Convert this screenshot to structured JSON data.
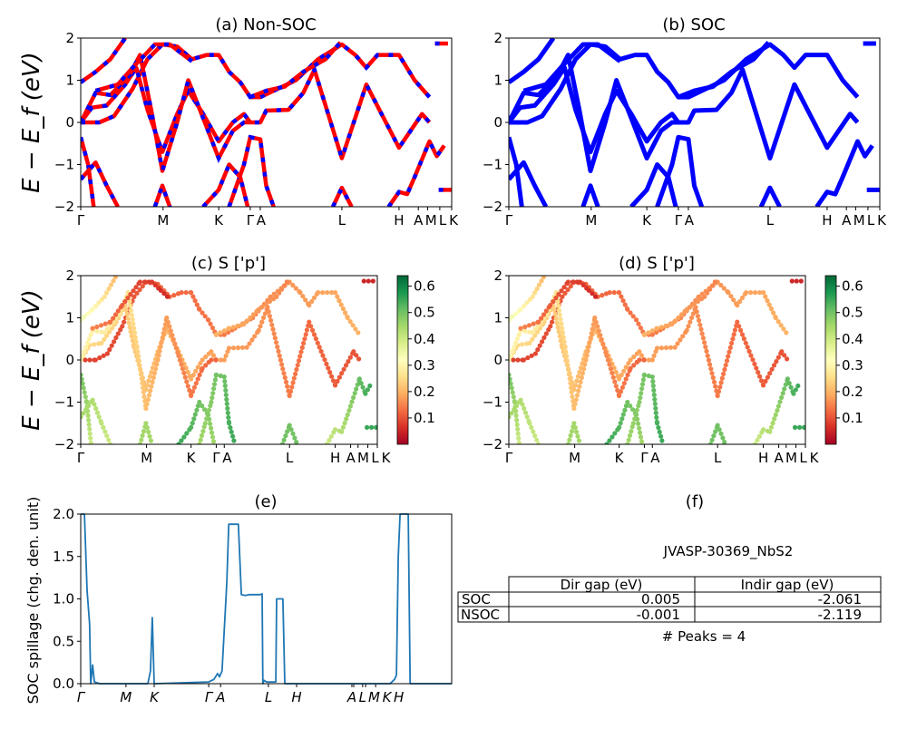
{
  "chart_data": {
    "type": "line",
    "band_panels": [
      {
        "id": "a",
        "title": "(a) Non-SOC",
        "ylabel": "E − E_f (eV)",
        "ylim": [
          -2,
          2
        ],
        "yticks": [
          "2",
          "1",
          "0",
          "−1",
          "−2"
        ],
        "style": "red-blue-dashed"
      },
      {
        "id": "b",
        "title": "(b) SOC",
        "ylabel": "",
        "ylim": [
          -2,
          2
        ],
        "yticks": [
          "2",
          "1",
          "0",
          "−1",
          "−2"
        ],
        "style": "blue"
      },
      {
        "id": "c",
        "title": "(c)  S ['p']",
        "ylabel": "E − E_f (eV)",
        "ylim": [
          -2,
          2
        ],
        "yticks": [
          "2",
          "1",
          "0",
          "−1",
          "−2"
        ],
        "style": "scatter",
        "colorbar": {
          "colormap": "RdYlGn",
          "range": [
            0.0,
            0.64
          ],
          "ticks": [
            "0.6",
            "0.5",
            "0.4",
            "0.3",
            "0.2",
            "0.1"
          ]
        }
      },
      {
        "id": "d",
        "title": "(d) S ['p']",
        "ylabel": "",
        "ylim": [
          -2,
          2
        ],
        "yticks": [
          "2",
          "1",
          "0",
          "−1",
          "−2"
        ],
        "style": "scatter",
        "colorbar": {
          "colormap": "RdYlGn",
          "range": [
            0.0,
            0.64
          ],
          "ticks": [
            "0.6",
            "0.5",
            "0.4",
            "0.3",
            "0.2",
            "0.1"
          ]
        }
      }
    ],
    "kpath_labels": [
      {
        "label": "Γ",
        "k": 0.0
      },
      {
        "label": "M",
        "k": 0.222
      },
      {
        "label": "K",
        "k": 0.372
      },
      {
        "label": "Γ",
        "k": 0.457
      },
      {
        "label": "A",
        "k": 0.484
      },
      {
        "label": "L",
        "k": 0.704
      },
      {
        "label": "H",
        "k": 0.858
      },
      {
        "label": "A",
        "k": 0.91
      },
      {
        "label": "M",
        "k": 0.935
      },
      {
        "label": "L",
        "k": 0.968
      },
      {
        "label": "K",
        "k": 1.0
      }
    ],
    "bands": [
      {
        "p_weight": [
          0.08,
          0.2
        ],
        "points": [
          [
            0,
            0
          ],
          [
            0.05,
            0
          ],
          [
            0.09,
            0.15
          ],
          [
            0.14,
            0.8
          ],
          [
            0.18,
            1.5
          ],
          [
            0.22,
            1.85
          ],
          [
            0.26,
            1.8
          ],
          [
            0.3,
            1.5
          ],
          [
            0.34,
            1.6
          ],
          [
            0.372,
            1.6
          ],
          [
            0.4,
            1.2
          ],
          [
            0.43,
            0.95
          ],
          [
            0.457,
            0.6
          ],
          [
            0.484,
            0.6
          ],
          [
            0.52,
            0.75
          ],
          [
            0.58,
            1.0
          ],
          [
            0.64,
            1.5
          ],
          [
            0.704,
            1.85
          ],
          [
            0.74,
            1.6
          ],
          [
            0.77,
            1.3
          ],
          [
            0.8,
            1.6
          ],
          [
            0.858,
            1.6
          ],
          [
            0.9,
            1.0
          ],
          [
            0.94,
            0.6
          ]
        ]
      },
      {
        "p_weight": [
          0.25,
          0.1
        ],
        "points": [
          [
            0,
            0
          ],
          [
            0.03,
            0.35
          ],
          [
            0.07,
            0.4
          ],
          [
            0.12,
            0.9
          ],
          [
            0.15,
            1.3
          ],
          [
            0.18,
            0.3
          ],
          [
            0.22,
            -0.7
          ],
          [
            0.26,
            0.2
          ],
          [
            0.29,
            0.75
          ],
          [
            0.33,
            0.2
          ],
          [
            0.372,
            -0.45
          ],
          [
            0.41,
            0.0
          ],
          [
            0.44,
            0.2
          ],
          [
            0.457,
            0.0
          ],
          [
            0.484,
            0.0
          ],
          [
            0.5,
            0.28
          ],
          [
            0.56,
            0.3
          ],
          [
            0.6,
            0.7
          ],
          [
            0.63,
            1.25
          ],
          [
            0.704,
            -0.85
          ],
          [
            0.77,
            0.9
          ],
          [
            0.858,
            -0.6
          ],
          [
            0.92,
            0.2
          ],
          [
            0.94,
            0.0
          ]
        ]
      },
      {
        "p_weight": [
          0.3,
          0.12
        ],
        "points": [
          [
            0,
            0
          ],
          [
            0.04,
            0.7
          ],
          [
            0.08,
            0.65
          ],
          [
            0.13,
            1.1
          ],
          [
            0.16,
            1.6
          ],
          [
            0.19,
            0.3
          ],
          [
            0.22,
            -1.15
          ],
          [
            0.26,
            0.0
          ],
          [
            0.29,
            1.0
          ],
          [
            0.33,
            0.1
          ],
          [
            0.372,
            -0.85
          ],
          [
            0.41,
            -0.2
          ],
          [
            0.44,
            0.0
          ],
          [
            0.457,
            0.0
          ]
        ]
      },
      {
        "p_weight": [
          0.35,
          0.2
        ],
        "points": [
          [
            0,
            0.95
          ],
          [
            0.04,
            1.2
          ],
          [
            0.08,
            1.5
          ],
          [
            0.12,
            2.0
          ]
        ]
      },
      {
        "p_weight": [
          0.15,
          0.05
        ],
        "points": [
          [
            0.04,
            0.75
          ],
          [
            0.1,
            0.9
          ],
          [
            0.14,
            1.3
          ],
          [
            0.2,
            1.85
          ],
          [
            0.24,
            1.85
          ],
          [
            0.27,
            1.65
          ],
          [
            0.3,
            1.45
          ]
        ]
      },
      {
        "p_weight": [
          0.2,
          0.15
        ],
        "points": [
          [
            0.457,
            0.6
          ],
          [
            0.5,
            0.75
          ],
          [
            0.55,
            0.85
          ],
          [
            0.6,
            1.2
          ],
          [
            0.66,
            1.5
          ],
          [
            0.7,
            1.9
          ]
        ]
      },
      {
        "p_weight": [
          0.45,
          0.55
        ],
        "points": [
          [
            0.4,
            -2
          ],
          [
            0.42,
            -1.5
          ],
          [
            0.44,
            -1.0
          ],
          [
            0.457,
            -0.35
          ],
          [
            0.484,
            -0.4
          ],
          [
            0.5,
            -1.5
          ],
          [
            0.52,
            -2
          ]
        ]
      },
      {
        "p_weight": [
          0.5,
          0.4
        ],
        "points": [
          [
            0,
            -0.35
          ],
          [
            0.02,
            -1.0
          ],
          [
            0.035,
            -2
          ]
        ]
      },
      {
        "p_weight": [
          0.45,
          0.4
        ],
        "points": [
          [
            0,
            -1.35
          ],
          [
            0.04,
            -0.95
          ],
          [
            0.07,
            -1.5
          ],
          [
            0.1,
            -2
          ]
        ]
      },
      {
        "p_weight": [
          0.45,
          0.45
        ],
        "points": [
          [
            0.2,
            -2
          ],
          [
            0.22,
            -1.5
          ],
          [
            0.24,
            -2
          ]
        ]
      },
      {
        "p_weight": [
          0.5,
          0.5
        ],
        "points": [
          [
            0.68,
            -2
          ],
          [
            0.704,
            -1.55
          ],
          [
            0.73,
            -2
          ]
        ]
      },
      {
        "p_weight": [
          0.55,
          0.45
        ],
        "points": [
          [
            0.33,
            -2
          ],
          [
            0.372,
            -1.6
          ],
          [
            0.4,
            -1.0
          ],
          [
            0.43,
            -1.3
          ],
          [
            0.45,
            -2
          ]
        ]
      },
      {
        "p_weight": [
          0.4,
          0.55
        ],
        "points": [
          [
            0.83,
            -2
          ],
          [
            0.858,
            -1.65
          ],
          [
            0.88,
            -1.7
          ],
          [
            0.9,
            -1.3
          ],
          [
            0.94,
            -0.45
          ],
          [
            0.96,
            -0.8
          ],
          [
            0.98,
            -0.55
          ]
        ]
      },
      {
        "p_weight": [
          0.05,
          0.05
        ],
        "points": [
          [
            0.955,
            1.87
          ],
          [
            0.99,
            1.87
          ]
        ]
      },
      {
        "p_weight": [
          0.55,
          0.55
        ],
        "points": [
          [
            0.965,
            -1.6
          ],
          [
            1.0,
            -1.6
          ]
        ]
      }
    ],
    "spillage": {
      "title": "(e)",
      "ylabel": "SOC spillage (chg. den. unit)",
      "ylim": [
        0,
        2.0
      ],
      "yticks": [
        "2.0",
        "1.5",
        "1.0",
        "0.5",
        "0.0"
      ],
      "color": "#1f77b4",
      "xtick_labels": [
        {
          "label": "Γ",
          "k": 0.0
        },
        {
          "label": "M",
          "k": 0.122
        },
        {
          "label": "K",
          "k": 0.198
        },
        {
          "label": "Γ",
          "k": 0.345
        },
        {
          "label": "A",
          "k": 0.377
        },
        {
          "label": "L",
          "k": 0.506
        },
        {
          "label": "H",
          "k": 0.582
        },
        {
          "label": "A",
          "k": 0.731
        },
        {
          "label": "L",
          "k": 0.736
        },
        {
          "label": "M",
          "k": 0.76
        },
        {
          "label": "K",
          "k": 0.768
        },
        {
          "label": "H",
          "k": 0.795
        }
      ],
      "points": [
        [
          0,
          2.0
        ],
        [
          0.01,
          2.0
        ],
        [
          0.017,
          1.1
        ],
        [
          0.024,
          0.7
        ],
        [
          0.027,
          0.0
        ],
        [
          0.032,
          0.22
        ],
        [
          0.037,
          0.02
        ],
        [
          0.051,
          0.0
        ],
        [
          0.181,
          0.0
        ],
        [
          0.188,
          0.15
        ],
        [
          0.193,
          0.78
        ],
        [
          0.198,
          0.0
        ],
        [
          0.345,
          0.02
        ],
        [
          0.359,
          0.05
        ],
        [
          0.369,
          0.12
        ],
        [
          0.374,
          0.08
        ],
        [
          0.381,
          0.15
        ],
        [
          0.389,
          0.8
        ],
        [
          0.394,
          1.2
        ],
        [
          0.399,
          1.88
        ],
        [
          0.425,
          1.88
        ],
        [
          0.433,
          1.05
        ],
        [
          0.443,
          1.04
        ],
        [
          0.455,
          1.05
        ],
        [
          0.484,
          1.05
        ],
        [
          0.489,
          1.06
        ],
        [
          0.491,
          0.0
        ],
        [
          0.494,
          0.04
        ],
        [
          0.501,
          0.02
        ],
        [
          0.526,
          0.02
        ],
        [
          0.528,
          1.0
        ],
        [
          0.545,
          1.0
        ],
        [
          0.55,
          0.0
        ],
        [
          0.834,
          0.0
        ],
        [
          0.846,
          0.05
        ],
        [
          0.851,
          0.1
        ],
        [
          0.856,
          1.5
        ],
        [
          0.861,
          2.0
        ],
        [
          0.883,
          2.0
        ],
        [
          0.888,
          0.0
        ],
        [
          1.0,
          0.0
        ]
      ]
    },
    "table": {
      "title": "(f)",
      "material": "JVASP-30369_NbS2",
      "columns": [
        "",
        "Dir gap (eV)",
        "Indir gap (eV)"
      ],
      "rows": [
        {
          "label": "SOC",
          "dir": "0.005",
          "indir": "-2.061"
        },
        {
          "label": "NSOC",
          "dir": "-0.001",
          "indir": "-2.119"
        }
      ],
      "peaks": "# Peaks = 4"
    }
  }
}
